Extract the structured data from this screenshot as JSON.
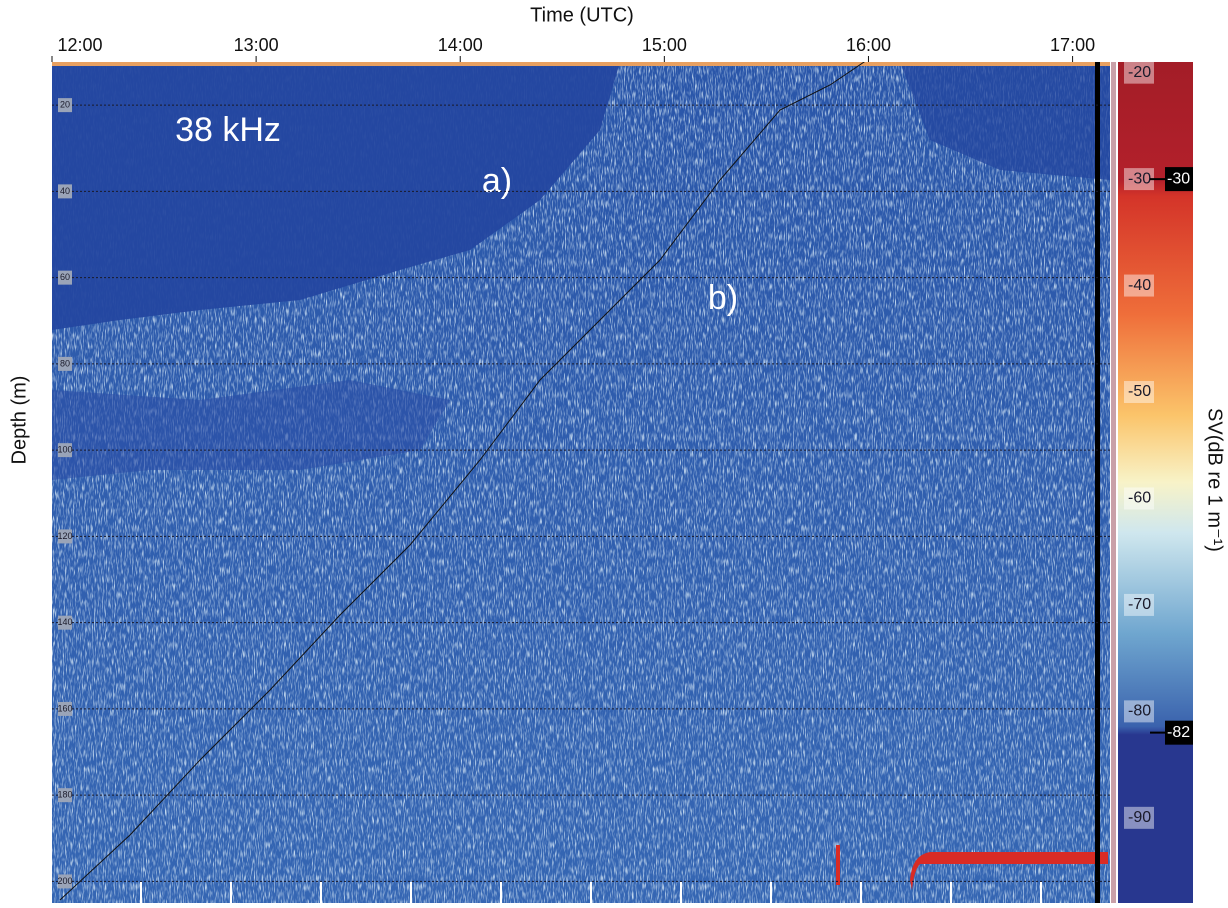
{
  "chart_data": {
    "type": "echogram",
    "x_label": "Time (UTC)",
    "y_label": "Depth (m)",
    "colorbar_label": "SV(dB re 1 m⁻¹)",
    "xlim": [
      0,
      311
    ],
    "xticks": [
      {
        "value": 0,
        "label": "12:00"
      },
      {
        "value": 60,
        "label": "13:00"
      },
      {
        "value": 120,
        "label": "14:00"
      },
      {
        "value": 180,
        "label": "15:00"
      },
      {
        "value": 240,
        "label": "16:00"
      },
      {
        "value": 300,
        "label": "17:00"
      }
    ],
    "ylim": [
      10,
      205
    ],
    "yticks": [
      20,
      40,
      60,
      80,
      100,
      120,
      140,
      160,
      180,
      200
    ],
    "grid": true,
    "clim": [
      -19,
      -98
    ],
    "cticks": [
      -20,
      -30,
      -40,
      -50,
      -60,
      -70,
      -80,
      -90
    ],
    "thresholds": [
      -30,
      -82
    ],
    "annotations": [
      "38 kHz",
      "a)",
      "b)"
    ]
  }
}
